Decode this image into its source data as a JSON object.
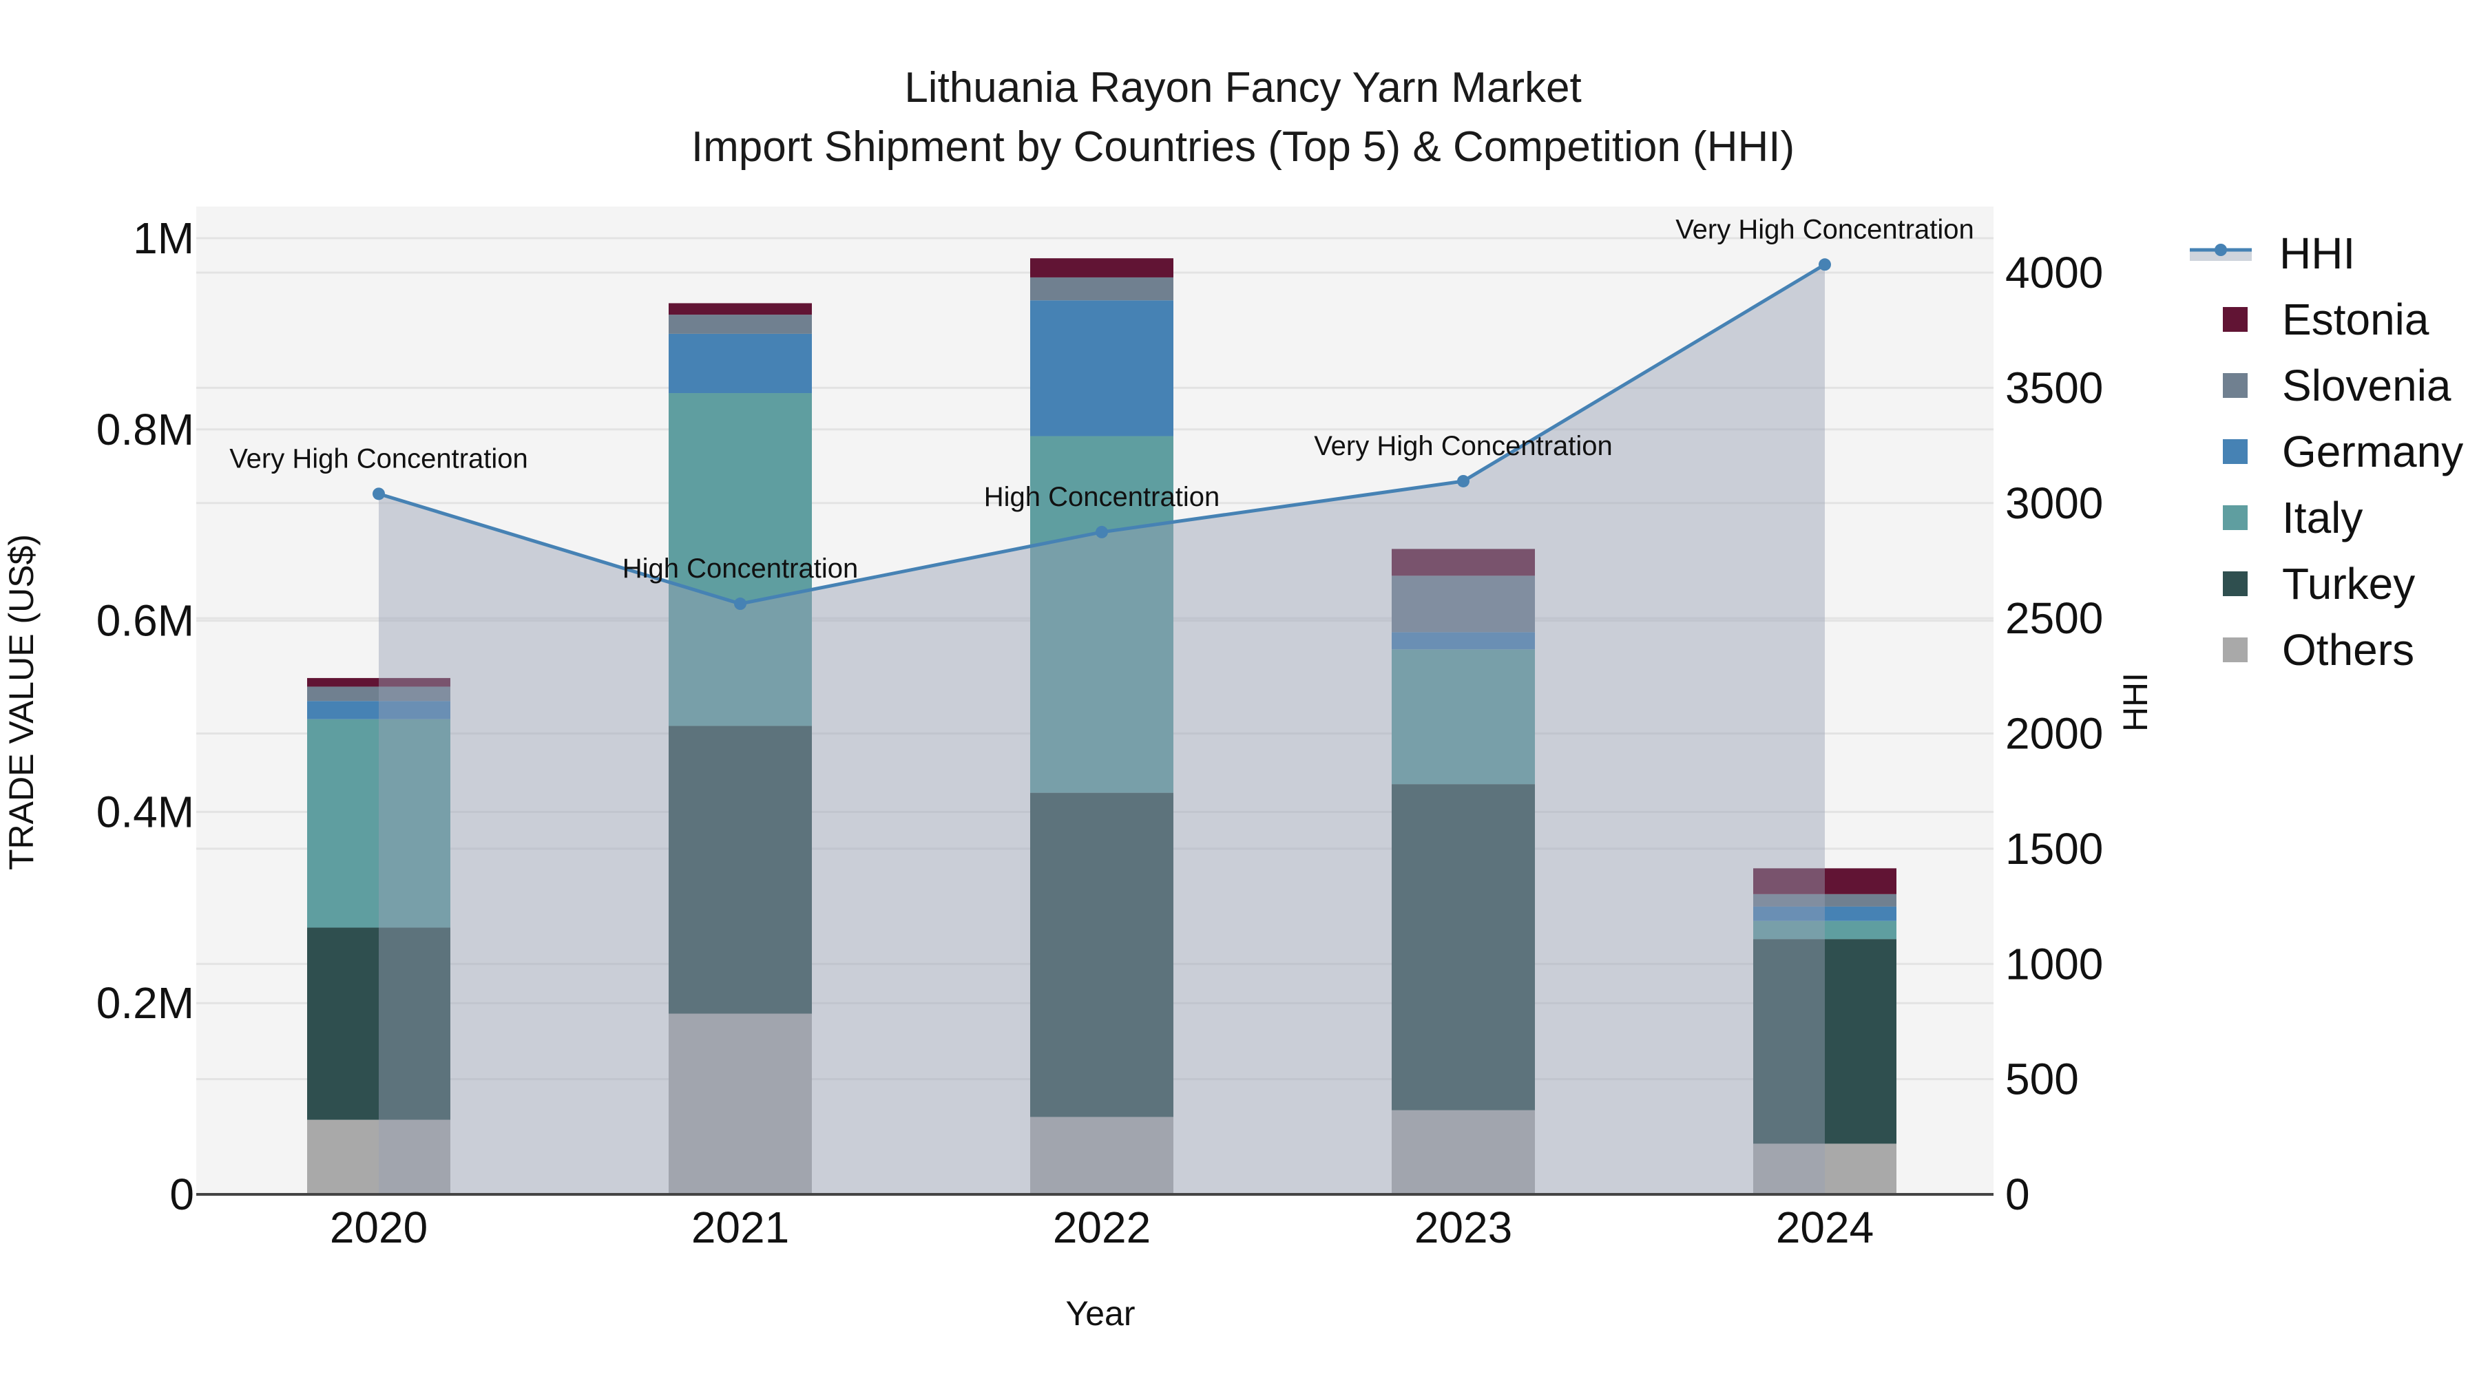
{
  "title": {
    "line1": "Lithuania Rayon Fancy Yarn Market",
    "line2": "Import Shipment by Countries (Top 5) & Competition (HHI)"
  },
  "axes": {
    "x_label": "Year",
    "y_left_label": "TRADE VALUE (US$)",
    "y_right_label": "HHI",
    "y_left_ticks": [
      "0",
      "0.2M",
      "0.4M",
      "0.6M",
      "0.8M",
      "1M"
    ],
    "y_right_ticks": [
      "0",
      "500",
      "1000",
      "1500",
      "2000",
      "2500",
      "3000",
      "3500",
      "4000"
    ]
  },
  "legend": [
    {
      "label": "HHI",
      "kind": "line",
      "color": "#4682b4"
    },
    {
      "label": "Estonia",
      "kind": "bar",
      "color": "#611434"
    },
    {
      "label": "Slovenia",
      "kind": "bar",
      "color": "#708090"
    },
    {
      "label": "Germany",
      "kind": "bar",
      "color": "#4682b4"
    },
    {
      "label": "Italy",
      "kind": "bar",
      "color": "#5f9ea0"
    },
    {
      "label": "Turkey",
      "kind": "bar",
      "color": "#2f4f4f"
    },
    {
      "label": "Others",
      "kind": "bar",
      "color": "#a9a9a9"
    }
  ],
  "chart_data": {
    "type": "bar",
    "stacked": true,
    "title": "Lithuania Rayon Fancy Yarn Market — Import Shipment by Countries (Top 5) & Competition (HHI)",
    "xlabel": "Year",
    "ylabel": "TRADE VALUE (US$)",
    "y2label": "HHI",
    "ylim": [
      0,
      1030000
    ],
    "y2lim": [
      0,
      4260
    ],
    "categories": [
      "2020",
      "2021",
      "2022",
      "2023",
      "2024"
    ],
    "series": [
      {
        "name": "Others",
        "color": "#a9a9a9",
        "values": [
          78000,
          189000,
          81000,
          88000,
          53000
        ]
      },
      {
        "name": "Turkey",
        "color": "#2f4f4f",
        "values": [
          201000,
          301000,
          339000,
          341000,
          214000
        ]
      },
      {
        "name": "Italy",
        "color": "#5f9ea0",
        "values": [
          218000,
          348000,
          373000,
          141000,
          19000
        ]
      },
      {
        "name": "Germany",
        "color": "#4682b4",
        "values": [
          19000,
          62000,
          142000,
          18000,
          15000
        ]
      },
      {
        "name": "Slovenia",
        "color": "#708090",
        "values": [
          15000,
          20000,
          24000,
          59000,
          13000
        ]
      },
      {
        "name": "Estonia",
        "color": "#611434",
        "values": [
          9000,
          12000,
          20000,
          28000,
          27000
        ]
      }
    ],
    "line_series": {
      "name": "HHI",
      "axis": "right",
      "color": "#4682b4",
      "fill": "rgba(150,160,180,0.45)",
      "values": [
        3040,
        2563,
        2874,
        3095,
        4035
      ],
      "annotations": [
        "Very High Concentration",
        "High Concentration",
        "High Concentration",
        "Very High Concentration",
        "Very High Concentration"
      ]
    },
    "grid": true,
    "legend_position": "right"
  }
}
